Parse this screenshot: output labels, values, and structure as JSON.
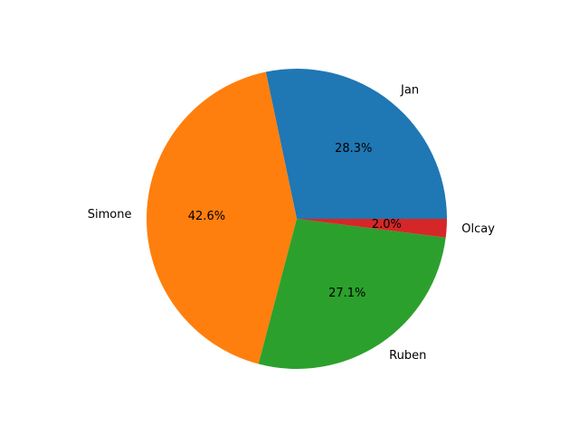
{
  "chart_data": {
    "type": "pie",
    "slices": [
      {
        "label": "Jan",
        "value": 28.3,
        "pct_text": "28.3%",
        "color": "#1f77b4"
      },
      {
        "label": "Simone",
        "value": 42.6,
        "pct_text": "42.6%",
        "color": "#ff7f0e"
      },
      {
        "label": "Ruben",
        "value": 27.1,
        "pct_text": "27.1%",
        "color": "#2ca02c"
      },
      {
        "label": "Olcay",
        "value": 2.0,
        "pct_text": "2.0%",
        "color": "#d62728"
      }
    ],
    "start_angle_deg": 0,
    "direction": "counterclockwise",
    "legend": "none"
  }
}
